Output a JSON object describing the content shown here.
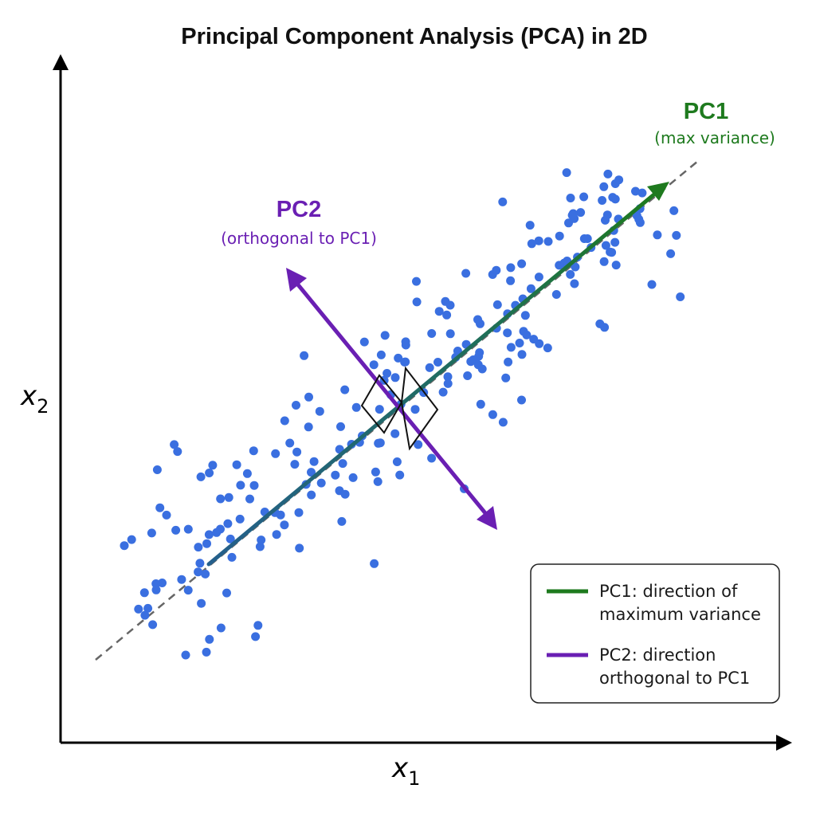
{
  "title": "Principal Component Analysis (PCA) in 2D",
  "axes": {
    "x_label": "x",
    "x_subscript": "1",
    "y_label": "x",
    "y_subscript": "2"
  },
  "pc1": {
    "name": "PC1",
    "note": "(max variance)",
    "color": "#1e7a1e"
  },
  "pc2": {
    "name": "PC2",
    "note": "(orthogonal to PC1)",
    "color": "#6a1fb3"
  },
  "point_color": "#3a6fe0",
  "legend": {
    "pc1_line1": "PC1: direction of",
    "pc1_line2": "maximum variance",
    "pc2_line1": "PC2: direction",
    "pc2_line2": "orthogonal to PC1"
  }
}
